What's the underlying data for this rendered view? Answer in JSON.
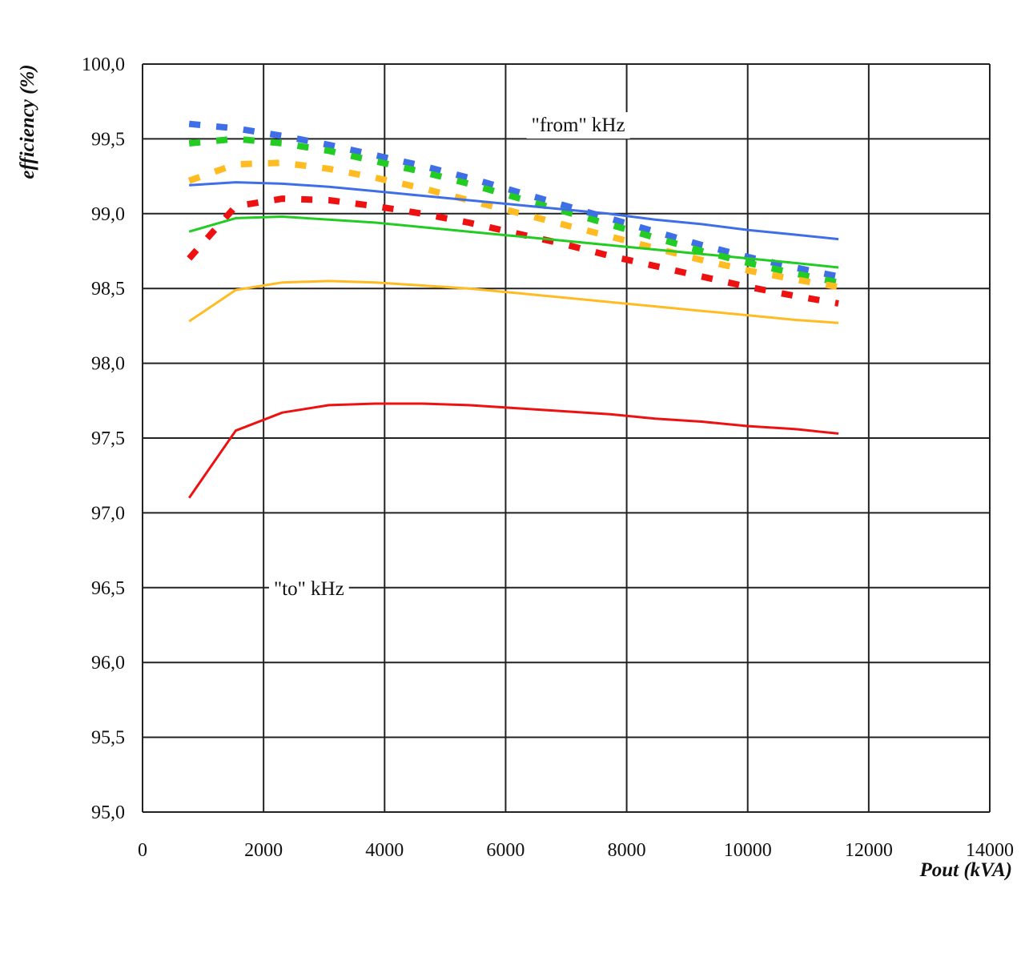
{
  "chart_data": {
    "type": "line",
    "title": "",
    "xlabel": "Pout (kVA)",
    "ylabel": "efficiency (%)",
    "xlim": [
      0,
      14000
    ],
    "ylim": [
      95.0,
      100.0
    ],
    "x_ticks": [
      0,
      2000,
      4000,
      6000,
      8000,
      10000,
      12000,
      14000
    ],
    "x_tick_labels": [
      "0",
      "2000",
      "4000",
      "6000",
      "8000",
      "10000",
      "12000",
      "14000"
    ],
    "y_ticks": [
      95.0,
      95.5,
      96.0,
      96.5,
      97.0,
      97.5,
      98.0,
      98.5,
      99.0,
      99.5,
      100.0
    ],
    "y_tick_labels": [
      "95,0",
      "95,5",
      "96,0",
      "96,5",
      "97,0",
      "97,5",
      "98,0",
      "98,5",
      "99,0",
      "99,5",
      "100,0"
    ],
    "grid": true,
    "legend": "none",
    "annotations": [
      {
        "text": "\"from\" kHz",
        "x": 7200,
        "y": 99.55
      },
      {
        "text": "\"to\" kHz",
        "x": 2750,
        "y": 96.45
      }
    ],
    "series": [
      {
        "color": "#3f6fe6",
        "style": "dashed",
        "x": [
          770,
          1540,
          2310,
          3080,
          3850,
          4620,
          5390,
          6160,
          6930,
          7700,
          8470,
          9240,
          10010,
          10780,
          11500
        ],
        "y": [
          99.6,
          99.57,
          99.52,
          99.46,
          99.39,
          99.32,
          99.24,
          99.15,
          99.06,
          98.97,
          98.88,
          98.79,
          98.71,
          98.64,
          98.58
        ]
      },
      {
        "color": "#22cc22",
        "style": "dashed",
        "x": [
          770,
          1540,
          2310,
          3080,
          3850,
          4620,
          5390,
          6160,
          6930,
          7700,
          8470,
          9240,
          10010,
          10780,
          11500
        ],
        "y": [
          99.47,
          99.5,
          99.47,
          99.42,
          99.35,
          99.28,
          99.2,
          99.11,
          99.02,
          98.93,
          98.84,
          98.75,
          98.67,
          98.6,
          98.54
        ]
      },
      {
        "color": "#ffbb22",
        "style": "dashed",
        "x": [
          770,
          1540,
          2310,
          3080,
          3850,
          4620,
          5390,
          6160,
          6930,
          7700,
          8470,
          9240,
          10010,
          10780,
          11500
        ],
        "y": [
          99.22,
          99.33,
          99.34,
          99.3,
          99.24,
          99.17,
          99.09,
          99.01,
          98.93,
          98.85,
          98.77,
          98.69,
          98.62,
          98.56,
          98.51
        ]
      },
      {
        "color": "#ee1111",
        "style": "dashed",
        "x": [
          770,
          1540,
          2310,
          3080,
          3850,
          4620,
          5390,
          6160,
          6930,
          7700,
          8470,
          9240,
          10010,
          10780,
          11500
        ],
        "y": [
          98.7,
          99.05,
          99.1,
          99.09,
          99.05,
          99.0,
          98.94,
          98.87,
          98.8,
          98.72,
          98.65,
          98.58,
          98.51,
          98.45,
          98.4
        ]
      },
      {
        "color": "#3f6fe6",
        "style": "solid",
        "x": [
          770,
          1540,
          2310,
          3080,
          3850,
          4620,
          5390,
          6160,
          6930,
          7700,
          8470,
          9240,
          10010,
          10780,
          11500
        ],
        "y": [
          99.19,
          99.21,
          99.2,
          99.18,
          99.15,
          99.12,
          99.09,
          99.06,
          99.03,
          99.0,
          98.96,
          98.93,
          98.89,
          98.86,
          98.83
        ]
      },
      {
        "color": "#22cc22",
        "style": "solid",
        "x": [
          770,
          1540,
          2310,
          3080,
          3850,
          4620,
          5390,
          6160,
          6930,
          7700,
          8470,
          9240,
          10010,
          10780,
          11500
        ],
        "y": [
          98.88,
          98.97,
          98.98,
          98.96,
          98.94,
          98.91,
          98.88,
          98.85,
          98.82,
          98.79,
          98.76,
          98.73,
          98.7,
          98.67,
          98.64
        ]
      },
      {
        "color": "#ffbb22",
        "style": "solid",
        "x": [
          770,
          1540,
          2310,
          3080,
          3850,
          4620,
          5390,
          6160,
          6930,
          7700,
          8470,
          9240,
          10010,
          10780,
          11500
        ],
        "y": [
          98.28,
          98.49,
          98.54,
          98.55,
          98.54,
          98.52,
          98.5,
          98.47,
          98.44,
          98.41,
          98.38,
          98.35,
          98.32,
          98.29,
          98.27
        ]
      },
      {
        "color": "#ee1111",
        "style": "solid",
        "x": [
          770,
          1540,
          2310,
          3080,
          3850,
          4620,
          5390,
          6160,
          6930,
          7700,
          8470,
          9240,
          10010,
          10780,
          11500
        ],
        "y": [
          97.1,
          97.55,
          97.67,
          97.72,
          97.73,
          97.73,
          97.72,
          97.7,
          97.68,
          97.66,
          97.63,
          97.61,
          97.58,
          97.56,
          97.53
        ]
      }
    ]
  }
}
